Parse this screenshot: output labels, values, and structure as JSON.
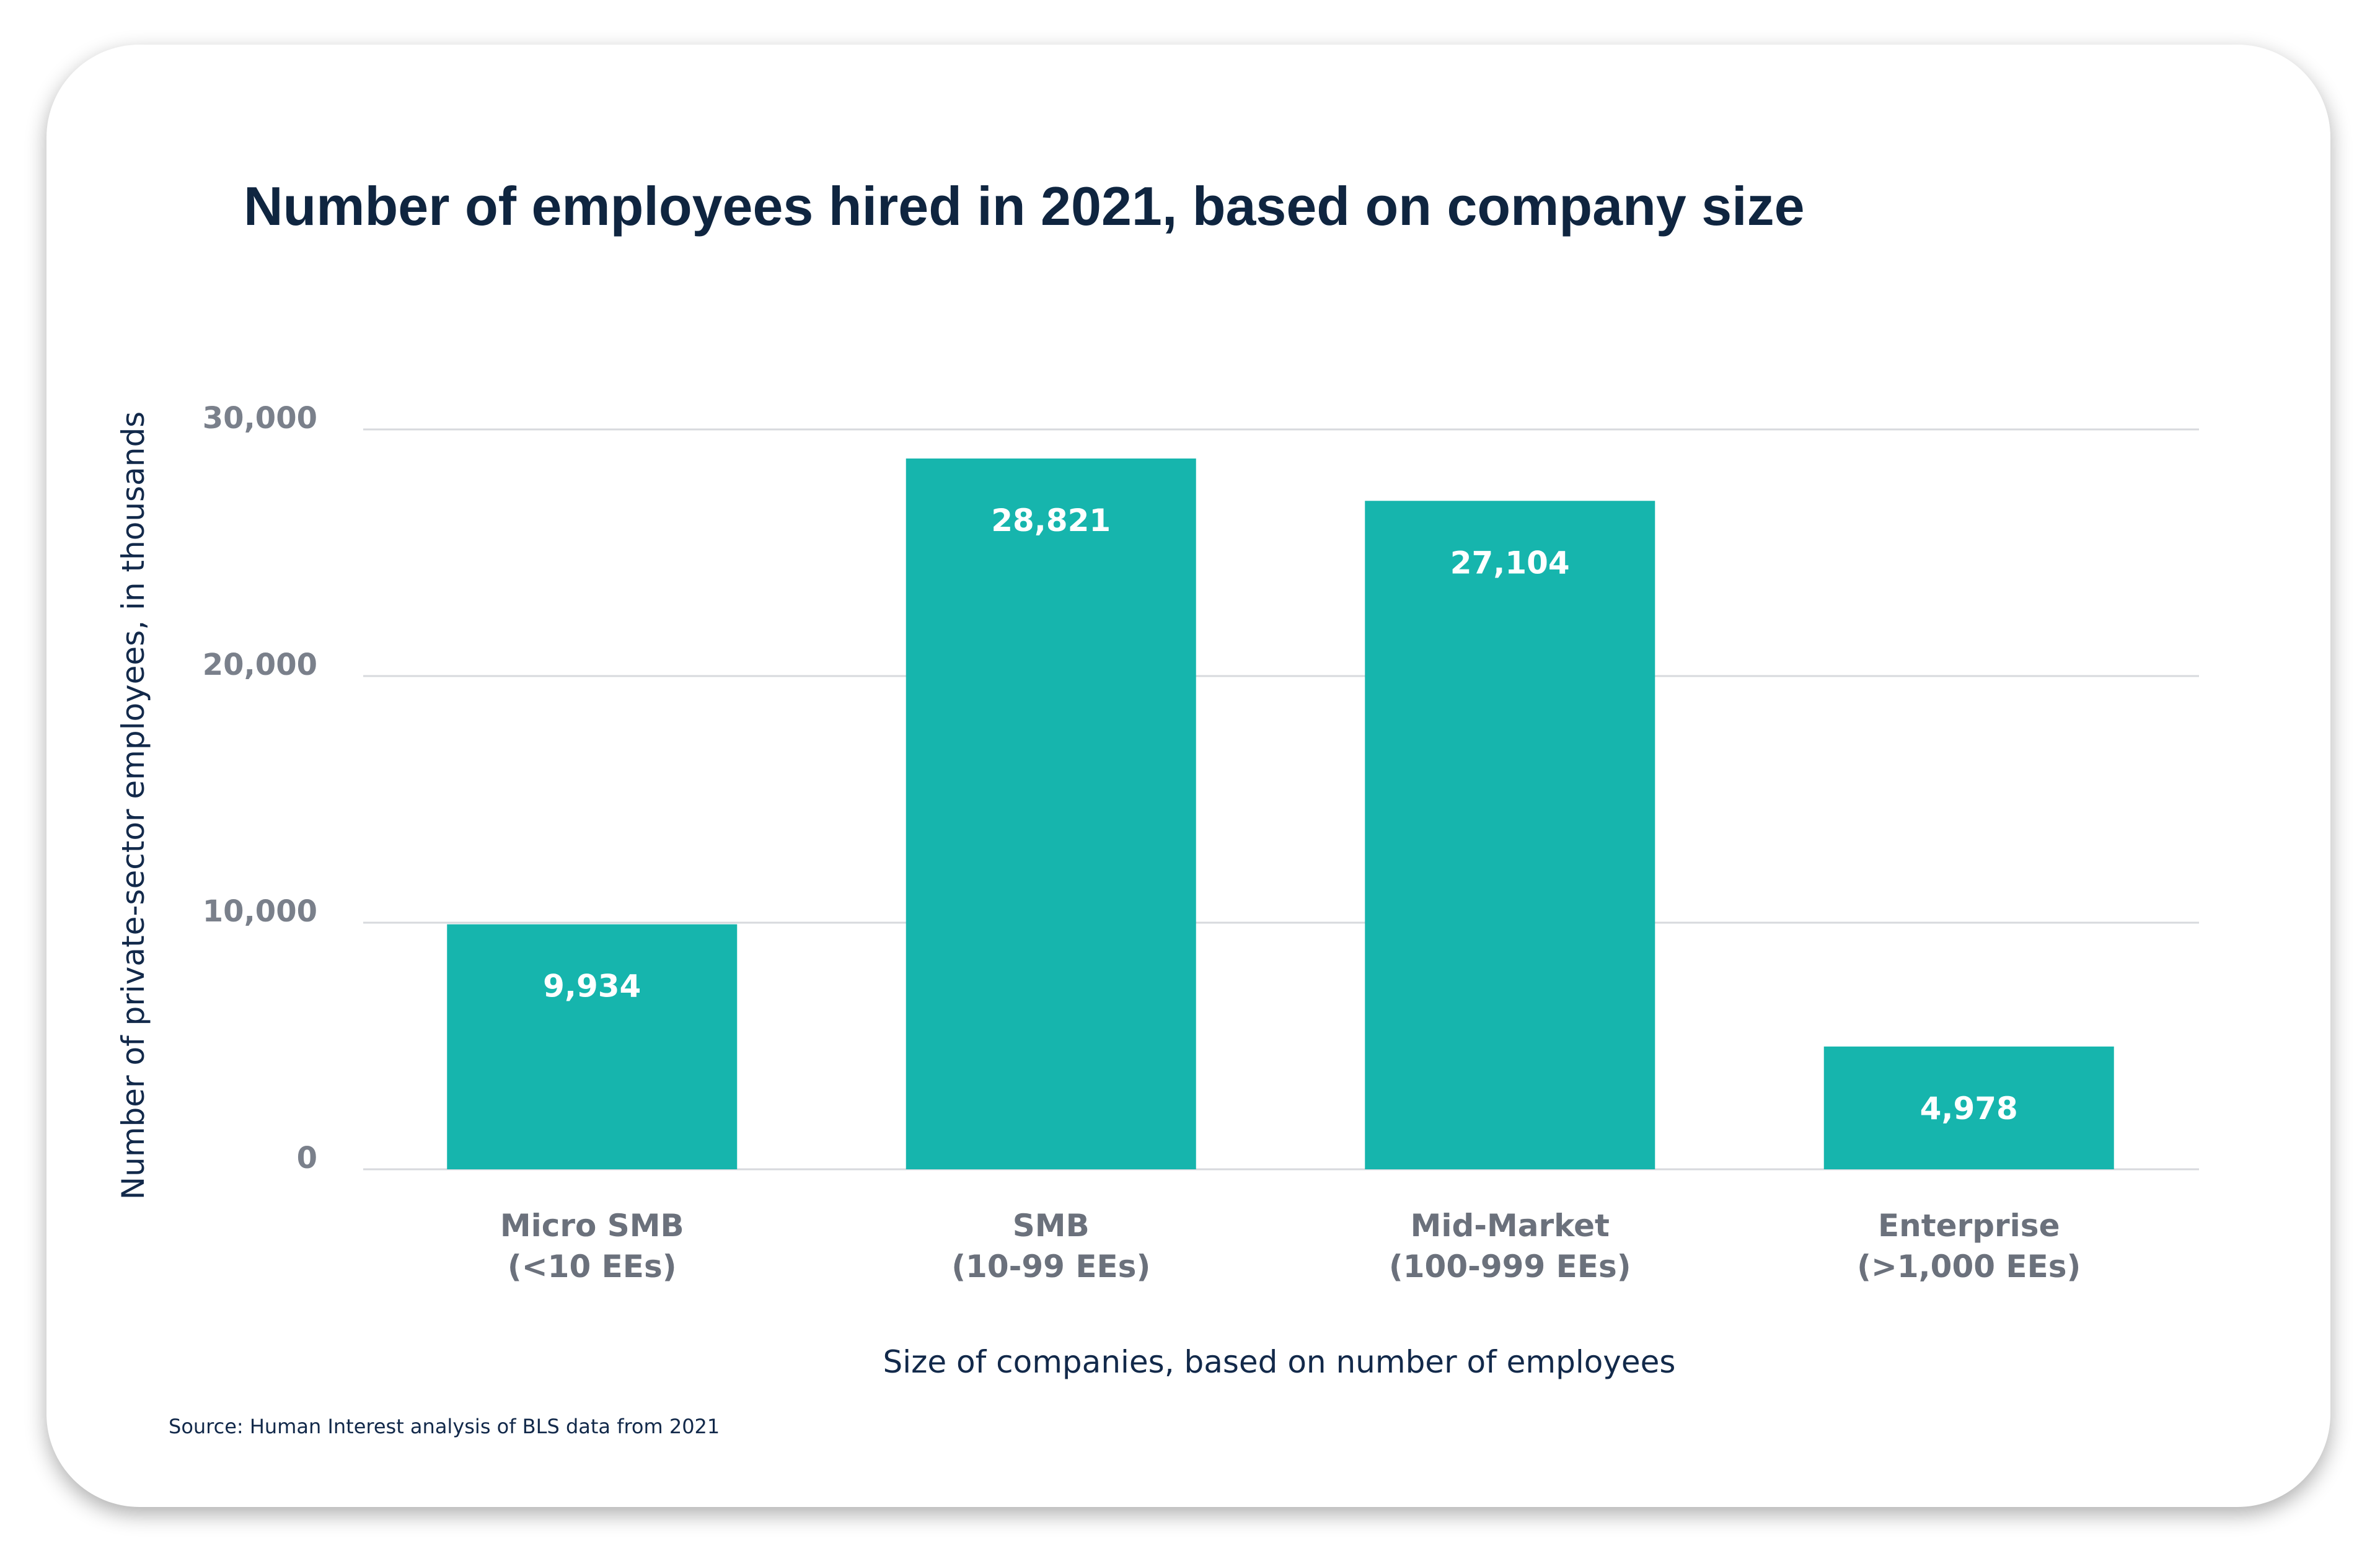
{
  "chart_data": {
    "type": "bar",
    "title": "Number of employees hired in 2021, based on company size",
    "xlabel": "Size of companies, based on number of employees",
    "ylabel": "Number of private-sector employees, in thousands",
    "categories": [
      [
        "Micro SMB",
        "(<10 EEs)"
      ],
      [
        "SMB",
        "(10-99 EEs)"
      ],
      [
        "Mid-Market",
        "(100-999 EEs)"
      ],
      [
        "Enterprise",
        "(>1,000 EEs)"
      ]
    ],
    "values": [
      9934,
      28821,
      27104,
      4978
    ],
    "value_labels": [
      "9,934",
      "28,821",
      "27,104",
      "4,978"
    ],
    "ylim": [
      0,
      30000
    ],
    "yticks": [
      0,
      10000,
      20000,
      30000
    ],
    "ytick_labels": [
      "0",
      "10,000",
      "20,000",
      "30,000"
    ],
    "grid": true,
    "legend": "none",
    "bar_color": "#16b5ad",
    "source": "Source: Human Interest analysis of BLS data from 2021"
  }
}
